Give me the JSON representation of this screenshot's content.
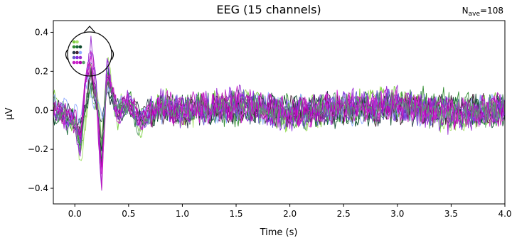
{
  "chart_data": {
    "type": "line",
    "title": "EEG (15 channels)",
    "nave_label": "N",
    "nave_sub": "ave",
    "nave_value": "=108",
    "xlabel": "Time (s)",
    "ylabel": "µV",
    "xlim": [
      -0.2,
      4.0
    ],
    "ylim": [
      -0.48,
      0.46
    ],
    "xticks": [
      0.0,
      0.5,
      1.0,
      1.5,
      2.0,
      2.5,
      3.0,
      3.5,
      4.0
    ],
    "xtick_labels": [
      "0.0",
      "0.5",
      "1.0",
      "1.5",
      "2.0",
      "2.5",
      "3.0",
      "3.5",
      "4.0"
    ],
    "yticks": [
      0.4,
      0.2,
      0.0,
      -0.2,
      -0.4
    ],
    "ytick_labels": [
      "0.4",
      "0.2",
      "0.0",
      "−0.2",
      "−0.4"
    ],
    "grid": false,
    "legend": "sensor-topomap-inset-top-left",
    "channel_count": 15,
    "colors": [
      "#7ccf3f",
      "#a6e06a",
      "#2e8b2e",
      "#1a6b3a",
      "#0b4a2a",
      "#2a3b4a",
      "#4a2a3a",
      "#8faaff",
      "#6a5acd",
      "#8a2be2",
      "#9b30d0",
      "#c020c0",
      "#d12ad1",
      "#b000b0",
      "#5a9a6a"
    ],
    "series": [
      {
        "values": [
          [
            -0.2,
            0.05
          ],
          [
            0.0,
            -0.1
          ],
          [
            0.05,
            -0.2
          ],
          [
            0.1,
            -0.05
          ],
          [
            0.15,
            0.1
          ],
          [
            0.2,
            0.05
          ],
          [
            0.25,
            -0.2
          ],
          [
            0.3,
            0.2
          ],
          [
            0.35,
            0.05
          ],
          [
            0.4,
            -0.05
          ],
          [
            0.5,
            0.05
          ],
          [
            0.6,
            -0.12
          ],
          [
            0.8,
            0.05
          ],
          [
            1.0,
            0.0
          ],
          [
            1.5,
            0.05
          ],
          [
            2.0,
            -0.05
          ],
          [
            2.5,
            0.02
          ],
          [
            3.0,
            0.05
          ],
          [
            3.5,
            -0.03
          ],
          [
            4.0,
            0.02
          ]
        ]
      },
      {
        "values": [
          [
            -0.2,
            0.0
          ],
          [
            0.0,
            -0.08
          ],
          [
            0.05,
            -0.25
          ],
          [
            0.1,
            -0.1
          ],
          [
            0.15,
            0.25
          ],
          [
            0.2,
            0.1
          ],
          [
            0.25,
            -0.15
          ],
          [
            0.3,
            0.25
          ],
          [
            0.35,
            0.1
          ],
          [
            0.4,
            0.0
          ],
          [
            0.5,
            0.08
          ],
          [
            0.6,
            -0.08
          ],
          [
            0.8,
            0.04
          ],
          [
            1.0,
            -0.03
          ],
          [
            1.5,
            0.06
          ],
          [
            2.0,
            -0.04
          ],
          [
            2.5,
            0.03
          ],
          [
            3.0,
            0.04
          ],
          [
            3.5,
            -0.05
          ],
          [
            4.0,
            0.0
          ]
        ]
      },
      {
        "values": [
          [
            -0.2,
            0.02
          ],
          [
            0.0,
            -0.05
          ],
          [
            0.05,
            -0.18
          ],
          [
            0.1,
            -0.02
          ],
          [
            0.15,
            0.2
          ],
          [
            0.2,
            0.08
          ],
          [
            0.25,
            -0.25
          ],
          [
            0.3,
            0.15
          ],
          [
            0.35,
            0.12
          ],
          [
            0.4,
            -0.02
          ],
          [
            0.5,
            0.06
          ],
          [
            0.6,
            -0.05
          ],
          [
            0.8,
            0.03
          ],
          [
            1.0,
            0.02
          ],
          [
            1.5,
            -0.02
          ],
          [
            2.0,
            0.03
          ],
          [
            2.5,
            -0.04
          ],
          [
            3.0,
            0.02
          ],
          [
            3.5,
            0.05
          ],
          [
            4.0,
            -0.02
          ]
        ]
      },
      {
        "values": [
          [
            -0.2,
            0.0
          ],
          [
            0.0,
            -0.1
          ],
          [
            0.05,
            -0.15
          ],
          [
            0.1,
            0.0
          ],
          [
            0.15,
            0.15
          ],
          [
            0.2,
            0.05
          ],
          [
            0.25,
            -0.22
          ],
          [
            0.3,
            0.2
          ],
          [
            0.35,
            0.08
          ],
          [
            0.4,
            0.0
          ],
          [
            0.5,
            0.03
          ],
          [
            0.6,
            -0.06
          ],
          [
            0.8,
            0.02
          ],
          [
            1.0,
            0.0
          ],
          [
            1.5,
            0.03
          ],
          [
            2.0,
            -0.02
          ],
          [
            2.5,
            0.01
          ],
          [
            3.0,
            0.03
          ],
          [
            3.5,
            -0.02
          ],
          [
            4.0,
            0.01
          ]
        ]
      },
      {
        "values": [
          [
            -0.2,
            -0.02
          ],
          [
            0.0,
            -0.06
          ],
          [
            0.05,
            -0.12
          ],
          [
            0.1,
            0.02
          ],
          [
            0.15,
            0.12
          ],
          [
            0.2,
            0.04
          ],
          [
            0.25,
            -0.18
          ],
          [
            0.3,
            0.18
          ],
          [
            0.35,
            0.06
          ],
          [
            0.4,
            -0.02
          ],
          [
            0.5,
            0.02
          ],
          [
            0.6,
            -0.04
          ],
          [
            0.8,
            0.01
          ],
          [
            1.0,
            0.01
          ],
          [
            1.5,
            -0.01
          ],
          [
            2.0,
            0.02
          ],
          [
            2.5,
            -0.02
          ],
          [
            3.0,
            0.01
          ],
          [
            3.5,
            0.02
          ],
          [
            4.0,
            -0.01
          ]
        ]
      },
      {
        "values": [
          [
            -0.2,
            0.01
          ],
          [
            0.0,
            -0.04
          ],
          [
            0.05,
            -0.1
          ],
          [
            0.1,
            0.05
          ],
          [
            0.15,
            0.18
          ],
          [
            0.2,
            0.06
          ],
          [
            0.25,
            -0.12
          ],
          [
            0.3,
            0.12
          ],
          [
            0.35,
            0.04
          ],
          [
            0.4,
            0.01
          ],
          [
            0.5,
            0.04
          ],
          [
            0.6,
            -0.02
          ],
          [
            0.8,
            0.02
          ],
          [
            1.0,
            -0.01
          ],
          [
            1.5,
            0.02
          ],
          [
            2.0,
            -0.01
          ],
          [
            2.5,
            0.02
          ],
          [
            3.0,
            -0.01
          ],
          [
            3.5,
            0.01
          ],
          [
            4.0,
            0.0
          ]
        ]
      },
      {
        "values": [
          [
            -0.2,
            -0.01
          ],
          [
            0.0,
            -0.05
          ],
          [
            0.05,
            -0.12
          ],
          [
            0.1,
            0.03
          ],
          [
            0.15,
            0.16
          ],
          [
            0.2,
            0.05
          ],
          [
            0.25,
            -0.2
          ],
          [
            0.3,
            0.16
          ],
          [
            0.35,
            0.06
          ],
          [
            0.4,
            -0.01
          ],
          [
            0.5,
            0.03
          ],
          [
            0.6,
            -0.03
          ],
          [
            0.8,
            0.01
          ],
          [
            1.0,
            0.0
          ],
          [
            1.5,
            0.01
          ],
          [
            2.0,
            0.0
          ],
          [
            2.5,
            0.01
          ],
          [
            3.0,
            0.0
          ],
          [
            3.5,
            0.0
          ],
          [
            4.0,
            0.0
          ]
        ]
      },
      {
        "values": [
          [
            -0.2,
            0.02
          ],
          [
            0.0,
            0.0
          ],
          [
            0.05,
            -0.05
          ],
          [
            0.1,
            0.12
          ],
          [
            0.15,
            0.1
          ],
          [
            0.2,
            0.04
          ],
          [
            0.25,
            -0.05
          ],
          [
            0.3,
            0.1
          ],
          [
            0.35,
            0.05
          ],
          [
            0.4,
            0.02
          ],
          [
            0.5,
            0.03
          ],
          [
            0.6,
            -0.02
          ],
          [
            0.8,
            0.01
          ],
          [
            1.0,
            0.0
          ],
          [
            1.5,
            0.01
          ],
          [
            2.0,
            0.0
          ],
          [
            2.5,
            0.01
          ],
          [
            3.0,
            0.0
          ],
          [
            3.5,
            0.01
          ],
          [
            4.0,
            0.0
          ]
        ]
      },
      {
        "values": [
          [
            -0.2,
            0.0
          ],
          [
            0.0,
            -0.06
          ],
          [
            0.05,
            -0.15
          ],
          [
            0.1,
            0.1
          ],
          [
            0.15,
            0.28
          ],
          [
            0.2,
            0.08
          ],
          [
            0.25,
            -0.3
          ],
          [
            0.3,
            0.22
          ],
          [
            0.35,
            0.08
          ],
          [
            0.4,
            -0.02
          ],
          [
            0.5,
            0.05
          ],
          [
            0.6,
            -0.06
          ],
          [
            0.8,
            0.03
          ],
          [
            1.0,
            0.0
          ],
          [
            1.5,
            0.03
          ],
          [
            2.0,
            -0.03
          ],
          [
            2.5,
            0.02
          ],
          [
            3.0,
            0.03
          ],
          [
            3.5,
            -0.02
          ],
          [
            4.0,
            0.01
          ]
        ]
      },
      {
        "values": [
          [
            -0.2,
            0.01
          ],
          [
            0.0,
            -0.07
          ],
          [
            0.05,
            -0.2
          ],
          [
            0.1,
            0.15
          ],
          [
            0.15,
            0.32
          ],
          [
            0.2,
            0.1
          ],
          [
            0.25,
            -0.38
          ],
          [
            0.3,
            0.25
          ],
          [
            0.35,
            0.1
          ],
          [
            0.4,
            -0.03
          ],
          [
            0.5,
            0.06
          ],
          [
            0.6,
            -0.07
          ],
          [
            0.8,
            0.04
          ],
          [
            1.0,
            -0.01
          ],
          [
            1.5,
            0.04
          ],
          [
            2.0,
            -0.03
          ],
          [
            2.5,
            0.03
          ],
          [
            3.0,
            0.03
          ],
          [
            3.5,
            -0.03
          ],
          [
            4.0,
            0.01
          ]
        ]
      },
      {
        "values": [
          [
            -0.2,
            0.0
          ],
          [
            0.0,
            -0.08
          ],
          [
            0.05,
            -0.22
          ],
          [
            0.1,
            0.18
          ],
          [
            0.15,
            0.35
          ],
          [
            0.2,
            0.12
          ],
          [
            0.25,
            -0.42
          ],
          [
            0.3,
            0.27
          ],
          [
            0.35,
            0.12
          ],
          [
            0.4,
            -0.04
          ],
          [
            0.5,
            0.07
          ],
          [
            0.6,
            -0.08
          ],
          [
            0.8,
            0.04
          ],
          [
            1.0,
            -0.01
          ],
          [
            1.5,
            0.05
          ],
          [
            2.0,
            -0.04
          ],
          [
            2.5,
            0.03
          ],
          [
            3.0,
            0.04
          ],
          [
            3.5,
            -0.04
          ],
          [
            4.0,
            0.01
          ]
        ]
      },
      {
        "values": [
          [
            -0.2,
            0.02
          ],
          [
            0.0,
            -0.06
          ],
          [
            0.05,
            -0.18
          ],
          [
            0.1,
            0.2
          ],
          [
            0.15,
            0.3
          ],
          [
            0.2,
            0.1
          ],
          [
            0.25,
            -0.44
          ],
          [
            0.3,
            0.22
          ],
          [
            0.35,
            0.1
          ],
          [
            0.4,
            -0.02
          ],
          [
            0.5,
            0.06
          ],
          [
            0.6,
            -0.06
          ],
          [
            0.8,
            0.03
          ],
          [
            1.0,
            0.0
          ],
          [
            1.5,
            0.04
          ],
          [
            2.0,
            -0.02
          ],
          [
            2.5,
            0.02
          ],
          [
            3.0,
            0.03
          ],
          [
            3.5,
            -0.03
          ],
          [
            4.0,
            0.02
          ]
        ]
      },
      {
        "values": [
          [
            -0.2,
            -0.01
          ],
          [
            0.0,
            -0.05
          ],
          [
            0.05,
            -0.15
          ],
          [
            0.1,
            0.16
          ],
          [
            0.15,
            0.26
          ],
          [
            0.2,
            0.08
          ],
          [
            0.25,
            -0.36
          ],
          [
            0.3,
            0.2
          ],
          [
            0.35,
            0.08
          ],
          [
            0.4,
            -0.02
          ],
          [
            0.5,
            0.05
          ],
          [
            0.6,
            -0.05
          ],
          [
            0.8,
            0.03
          ],
          [
            1.0,
            0.0
          ],
          [
            1.5,
            0.03
          ],
          [
            2.0,
            -0.02
          ],
          [
            2.5,
            0.02
          ],
          [
            3.0,
            0.02
          ],
          [
            3.5,
            -0.02
          ],
          [
            4.0,
            0.01
          ]
        ]
      },
      {
        "values": [
          [
            -0.2,
            0.0
          ],
          [
            0.0,
            -0.04
          ],
          [
            0.05,
            -0.12
          ],
          [
            0.1,
            0.12
          ],
          [
            0.15,
            0.22
          ],
          [
            0.2,
            0.06
          ],
          [
            0.25,
            -0.3
          ],
          [
            0.3,
            0.18
          ],
          [
            0.35,
            0.06
          ],
          [
            0.4,
            -0.01
          ],
          [
            0.5,
            0.04
          ],
          [
            0.6,
            -0.04
          ],
          [
            0.8,
            0.02
          ],
          [
            1.0,
            0.0
          ],
          [
            1.5,
            0.02
          ],
          [
            2.0,
            -0.01
          ],
          [
            2.5,
            0.01
          ],
          [
            3.0,
            0.02
          ],
          [
            3.5,
            -0.01
          ],
          [
            4.0,
            0.0
          ]
        ]
      },
      {
        "values": [
          [
            -0.2,
            0.03
          ],
          [
            0.0,
            -0.09
          ],
          [
            0.05,
            -0.17
          ],
          [
            0.1,
            0.0
          ],
          [
            0.15,
            0.14
          ],
          [
            0.2,
            0.06
          ],
          [
            0.25,
            -0.16
          ],
          [
            0.3,
            0.14
          ],
          [
            0.35,
            0.07
          ],
          [
            0.4,
            -0.01
          ],
          [
            0.5,
            0.04
          ],
          [
            0.6,
            -0.09
          ],
          [
            0.8,
            0.03
          ],
          [
            1.0,
            0.01
          ],
          [
            1.5,
            0.02
          ],
          [
            2.0,
            -0.03
          ],
          [
            2.5,
            0.02
          ],
          [
            3.0,
            0.02
          ],
          [
            3.5,
            -0.02
          ],
          [
            4.0,
            0.01
          ]
        ]
      }
    ]
  }
}
